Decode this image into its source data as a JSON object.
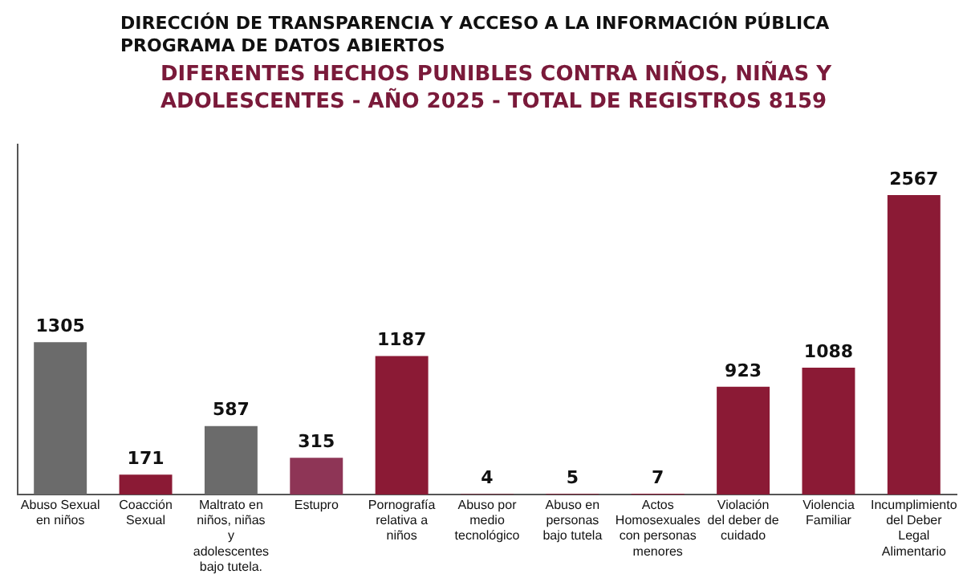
{
  "chart_data": {
    "type": "bar",
    "title": "DIFERENTES HECHOS PUNIBLES CONTRA NIÑOS, NIÑAS Y ADOLESCENTES -  AÑO 2025 - TOTAL DE REGISTROS 8159",
    "annotations": [
      "DIRECCIÓN DE TRANSPARENCIA Y ACCESO A LA INFORMACIÓN PÚBLICA",
      "PROGRAMA DE DATOS ABIERTOS"
    ],
    "categories": [
      "Abuso Sexual en niños",
      "Coacción Sexual",
      "Maltrato en niños, niñas y adolescentes bajo tutela.",
      "Estupro",
      "Pornografía relativa a niños",
      "Abuso por medio tecnológico",
      "Abuso en personas bajo tutela",
      "Actos Homosexuales con personas menores",
      "Violación del deber de cuidado",
      "Violencia Familiar",
      "Incumplimiento del Deber Legal Alimentario"
    ],
    "values": [
      1305,
      171,
      587,
      315,
      1187,
      4,
      5,
      7,
      923,
      1088,
      2567
    ],
    "colors": [
      "#6b6b6b",
      "#8b1a35",
      "#6b6b6b",
      "#8e3556",
      "#8b1a35",
      "#8b1a35",
      "#8b1a35",
      "#8b1a35",
      "#8b1a35",
      "#8b1a35",
      "#8b1a35"
    ],
    "data_labels": true,
    "grid": false,
    "legend": false,
    "tick_labels": "x"
  }
}
